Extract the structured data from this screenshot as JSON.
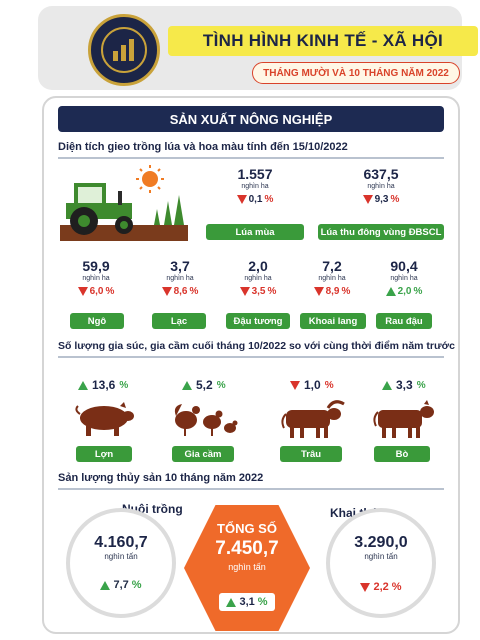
{
  "header": {
    "title": "TÌNH HÌNH KINH TẾ - XÃ HỘI",
    "subtitle": "THÁNG MƯỜI VÀ 10 THÁNG NĂM 2022",
    "logo_icon": "statistics-office-seal-icon"
  },
  "section": {
    "title": "SẢN XUẤT NÔNG NGHIỆP"
  },
  "planting": {
    "heading": "Diện tích gieo trồng lúa và hoa màu tính đến 15/10/2022",
    "illustration_icon": "tractor-farm-icon",
    "main": [
      {
        "value": "1.557",
        "unit": "nghìn ha",
        "change": "0,1",
        "pct_sign": "%",
        "direction": "down",
        "label": "Lúa mùa"
      },
      {
        "value": "637,5",
        "unit": "nghìn ha",
        "change": "9,3",
        "pct_sign": "%",
        "direction": "down",
        "label": "Lúa thu đông vùng ĐBSCL"
      }
    ],
    "crops": [
      {
        "value": "59,9",
        "unit": "nghìn ha",
        "change": "6,0",
        "pct_sign": "%",
        "direction": "down",
        "label": "Ngô"
      },
      {
        "value": "3,7",
        "unit": "nghìn ha",
        "change": "8,6",
        "pct_sign": "%",
        "direction": "down",
        "label": "Lạc"
      },
      {
        "value": "2,0",
        "unit": "nghìn ha",
        "change": "3,5",
        "pct_sign": "%",
        "direction": "down",
        "label": "Đậu tương"
      },
      {
        "value": "7,2",
        "unit": "nghìn ha",
        "change": "8,9",
        "pct_sign": "%",
        "direction": "down",
        "label": "Khoai lang"
      },
      {
        "value": "90,4",
        "unit": "nghìn ha",
        "change": "2,0",
        "pct_sign": "%",
        "direction": "up",
        "label": "Rau đậu"
      }
    ]
  },
  "livestock": {
    "heading": "Số lượng gia súc, gia cầm cuối tháng 10/2022 so với cùng thời điểm năm trước",
    "items": [
      {
        "change": "13,6",
        "pct_sign": "%",
        "direction": "up",
        "label": "Lợn",
        "icon": "pig-icon"
      },
      {
        "change": "5,2",
        "pct_sign": "%",
        "direction": "up",
        "label": "Gia cầm",
        "icon": "poultry-icon"
      },
      {
        "change": "1,0",
        "pct_sign": "%",
        "direction": "down",
        "label": "Trâu",
        "icon": "buffalo-icon"
      },
      {
        "change": "3,3",
        "pct_sign": "%",
        "direction": "up",
        "label": "Bò",
        "icon": "cow-icon"
      }
    ]
  },
  "fishery": {
    "heading": "Sản lượng thủy sản 10 tháng năm 2022",
    "aquaculture": {
      "label": "Nuôi trồng",
      "value": "4.160,7",
      "unit": "nghìn tấn",
      "change": "7,7",
      "pct_sign": "%",
      "direction": "up"
    },
    "total": {
      "label": "TỔNG SỐ",
      "value": "7.450,7",
      "unit": "nghìn tấn",
      "change": "3,1",
      "pct_sign": "%",
      "direction": "up"
    },
    "capture": {
      "label": "Khai thác",
      "value": "3.290,0",
      "unit": "nghìn tấn",
      "change": "2,2",
      "pct_sign": "%",
      "direction": "down"
    }
  }
}
